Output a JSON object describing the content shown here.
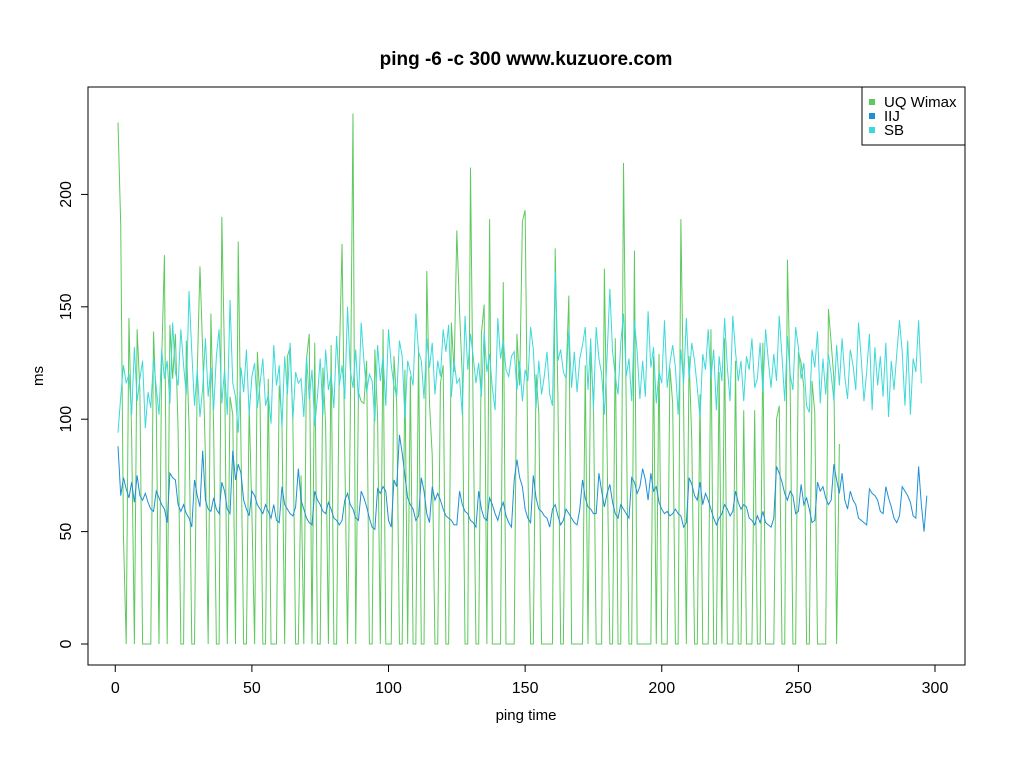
{
  "chart_data": {
    "type": "line",
    "title": "ping -6 -c 300 www.kuzuore.com",
    "xlabel": "ping time",
    "ylabel": "ms",
    "xlim": [
      1,
      300
    ],
    "ylim": [
      0,
      238
    ],
    "x_ticks": [
      0,
      50,
      100,
      150,
      200,
      250,
      300
    ],
    "y_ticks": [
      0,
      50,
      100,
      150,
      200
    ],
    "grid": false,
    "legend_position": "top-right",
    "series": [
      {
        "name": "UQ Wimax",
        "color": "#5ec95e",
        "values": [
          232,
          186,
          48,
          0,
          145,
          92,
          0,
          140,
          113,
          0,
          0,
          0,
          0,
          139,
          105,
          0,
          127,
          173,
          0,
          142,
          118,
          138,
          95,
          0,
          0,
          135,
          97,
          0,
          0,
          121,
          168,
          130,
          83,
          0,
          147,
          96,
          0,
          0,
          190,
          126,
          0,
          110,
          102,
          0,
          179,
          89,
          0,
          0,
          106,
          58,
          0,
          130,
          107,
          0,
          0,
          118,
          0,
          0,
          0,
          115,
          99,
          0,
          128,
          132,
          99,
          0,
          0,
          75,
          0,
          127,
          138,
          0,
          134,
          0,
          0,
          123,
          97,
          0,
          133,
          0,
          0,
          127,
          178,
          84,
          0,
          99,
          236,
          0,
          112,
          108,
          107,
          126,
          0,
          0,
          131,
          101,
          0,
          140,
          0,
          0,
          0,
          128,
          107,
          0,
          0,
          122,
          0,
          119,
          0,
          0,
          132,
          0,
          0,
          166,
          107,
          84,
          0,
          0,
          116,
          124,
          0,
          0,
          143,
          121,
          184,
          148,
          119,
          0,
          0,
          212,
          100,
          0,
          0,
          138,
          151,
          0,
          189,
          0,
          0,
          0,
          0,
          161,
          0,
          0,
          0,
          0,
          138,
          115,
          188,
          193,
          80,
          0,
          0,
          120,
          103,
          0,
          0,
          0,
          0,
          0,
          176,
          110,
          0,
          0,
          119,
          155,
          0,
          0,
          0,
          0,
          0,
          124,
          0,
          130,
          108,
          0,
          0,
          0,
          167,
          85,
          0,
          0,
          136,
          0,
          0,
          214,
          104,
          0,
          0,
          175,
          0,
          0,
          0,
          0,
          0,
          0,
          128,
          0,
          129,
          0,
          0,
          0,
          123,
          107,
          0,
          0,
          189,
          105,
          0,
          128,
          90,
          0,
          0,
          111,
          0,
          0,
          0,
          140,
          0,
          0,
          121,
          0,
          136,
          0,
          0,
          0,
          126,
          0,
          0,
          104,
          0,
          0,
          0,
          104,
          0,
          0,
          134,
          0,
          0,
          0,
          0,
          100,
          106,
          0,
          0,
          171,
          113,
          0,
          0,
          130,
          125,
          114,
          0,
          0,
          117,
          103,
          0,
          0,
          0,
          0,
          149,
          134,
          118,
          0,
          89
        ],
        "_reconstructed": true
      },
      {
        "name": "IIJ",
        "color": "#1f8fd6",
        "values": [
          88,
          66,
          74,
          69,
          65,
          72,
          63,
          75,
          66,
          64,
          67,
          63,
          60,
          59,
          68,
          65,
          62,
          60,
          54,
          76,
          74,
          73,
          62,
          59,
          62,
          58,
          56,
          52,
          73,
          66,
          61,
          86,
          64,
          60,
          59,
          65,
          60,
          58,
          72,
          68,
          60,
          58,
          86,
          73,
          80,
          76,
          64,
          60,
          57,
          68,
          66,
          62,
          60,
          58,
          62,
          59,
          56,
          62,
          55,
          54,
          70,
          62,
          60,
          58,
          57,
          61,
          78,
          64,
          60,
          56,
          54,
          53,
          68,
          64,
          62,
          59,
          58,
          63,
          60,
          56,
          55,
          53,
          55,
          64,
          67,
          62,
          60,
          56,
          55,
          68,
          65,
          61,
          56,
          52,
          51,
          69,
          67,
          70,
          68,
          55,
          52,
          73,
          70,
          93,
          85,
          75,
          65,
          62,
          60,
          55,
          57,
          74,
          68,
          58,
          54,
          70,
          64,
          67,
          64,
          60,
          57,
          56,
          55,
          53,
          53,
          68,
          62,
          59,
          58,
          55,
          54,
          52,
          68,
          60,
          56,
          55,
          65,
          62,
          58,
          55,
          60,
          63,
          57,
          54,
          52,
          73,
          82,
          74,
          70,
          60,
          56,
          54,
          75,
          65,
          60,
          59,
          57,
          56,
          52,
          60,
          62,
          57,
          53,
          55,
          60,
          58,
          56,
          54,
          53,
          60,
          73,
          65,
          61,
          60,
          58,
          58,
          76,
          68,
          61,
          67,
          71,
          63,
          58,
          56,
          62,
          60,
          58,
          56,
          74,
          72,
          67,
          70,
          78,
          73,
          64,
          76,
          68,
          70,
          63,
          60,
          58,
          59,
          57,
          58,
          60,
          58,
          57,
          52,
          54,
          74,
          71,
          66,
          64,
          72,
          62,
          67,
          64,
          60,
          56,
          53,
          56,
          58,
          62,
          60,
          57,
          59,
          68,
          63,
          60,
          62,
          61,
          56,
          55,
          53,
          57,
          54,
          59,
          54,
          53,
          52,
          56,
          79,
          76,
          72,
          67,
          64,
          68,
          66,
          58,
          59,
          71,
          62,
          65,
          60,
          54,
          55,
          72,
          68,
          70,
          65,
          62,
          64,
          80,
          73,
          67,
          76,
          64,
          60,
          68,
          64,
          62,
          56,
          55,
          54,
          53,
          69,
          67,
          66,
          64,
          59,
          58,
          70,
          65,
          61,
          56,
          54,
          57,
          70,
          68,
          66,
          63,
          57,
          56,
          79,
          62,
          50,
          66
        ],
        "_reconstructed": true
      },
      {
        "name": "SB",
        "color": "#3dd9d9",
        "values": [
          94,
          110,
          124,
          116,
          120,
          102,
          132,
          108,
          118,
          126,
          96,
          112,
          105,
          127,
          114,
          102,
          131,
          118,
          126,
          107,
          143,
          121,
          115,
          140,
          124,
          111,
          157,
          130,
          106,
          122,
          101,
          114,
          136,
          110,
          123,
          104,
          128,
          140,
          107,
          122,
          102,
          153,
          116,
          110,
          94,
          123,
          112,
          131,
          102,
          119,
          125,
          105,
          116,
          127,
          106,
          111,
          98,
          133,
          115,
          124,
          96,
          128,
          111,
          134,
          100,
          121,
          116,
          118,
          101,
          128,
          109,
          122,
          97,
          110,
          127,
          102,
          131,
          113,
          120,
          105,
          137,
          115,
          124,
          109,
          150,
          122,
          114,
          131,
          108,
          143,
          126,
          112,
          120,
          117,
          99,
          133,
          117,
          128,
          106,
          140,
          124,
          115,
          110,
          135,
          128,
          100,
          126,
          121,
          115,
          147,
          130,
          126,
          109,
          136,
          123,
          134,
          111,
          126,
          119,
          140,
          130,
          142,
          110,
          126,
          116,
          118,
          102,
          146,
          122,
          138,
          128,
          116,
          125,
          110,
          139,
          121,
          129,
          114,
          104,
          145,
          127,
          135,
          122,
          119,
          128,
          130,
          113,
          126,
          108,
          122,
          117,
          141,
          131,
          105,
          126,
          111,
          119,
          130,
          111,
          106,
          166,
          126,
          131,
          121,
          118,
          140,
          114,
          130,
          112,
          127,
          133,
          141,
          113,
          136,
          104,
          141,
          127,
          120,
          102,
          128,
          158,
          130,
          119,
          111,
          134,
          147,
          119,
          127,
          108,
          144,
          130,
          109,
          126,
          110,
          148,
          123,
          132,
          107,
          121,
          116,
          144,
          114,
          125,
          133,
          123,
          102,
          131,
          116,
          145,
          118,
          134,
          126,
          114,
          101,
          129,
          122,
          140,
          118,
          131,
          104,
          128,
          117,
          145,
          123,
          108,
          146,
          130,
          117,
          126,
          108,
          128,
          122,
          136,
          114,
          118,
          134,
          112,
          140,
          126,
          114,
          129,
          117,
          146,
          128,
          108,
          137,
          120,
          113,
          141,
          132,
          118,
          125,
          106,
          103,
          131,
          123,
          139,
          107,
          127,
          111,
          129,
          120,
          108,
          133,
          115,
          136,
          119,
          109,
          131,
          124,
          113,
          143,
          127,
          108,
          121,
          138,
          104,
          132,
          115,
          128,
          110,
          134,
          101,
          126,
          113,
          129,
          144,
          130,
          106,
          135,
          102,
          127,
          121,
          144,
          116
        ],
        "_reconstructed": true
      }
    ]
  }
}
